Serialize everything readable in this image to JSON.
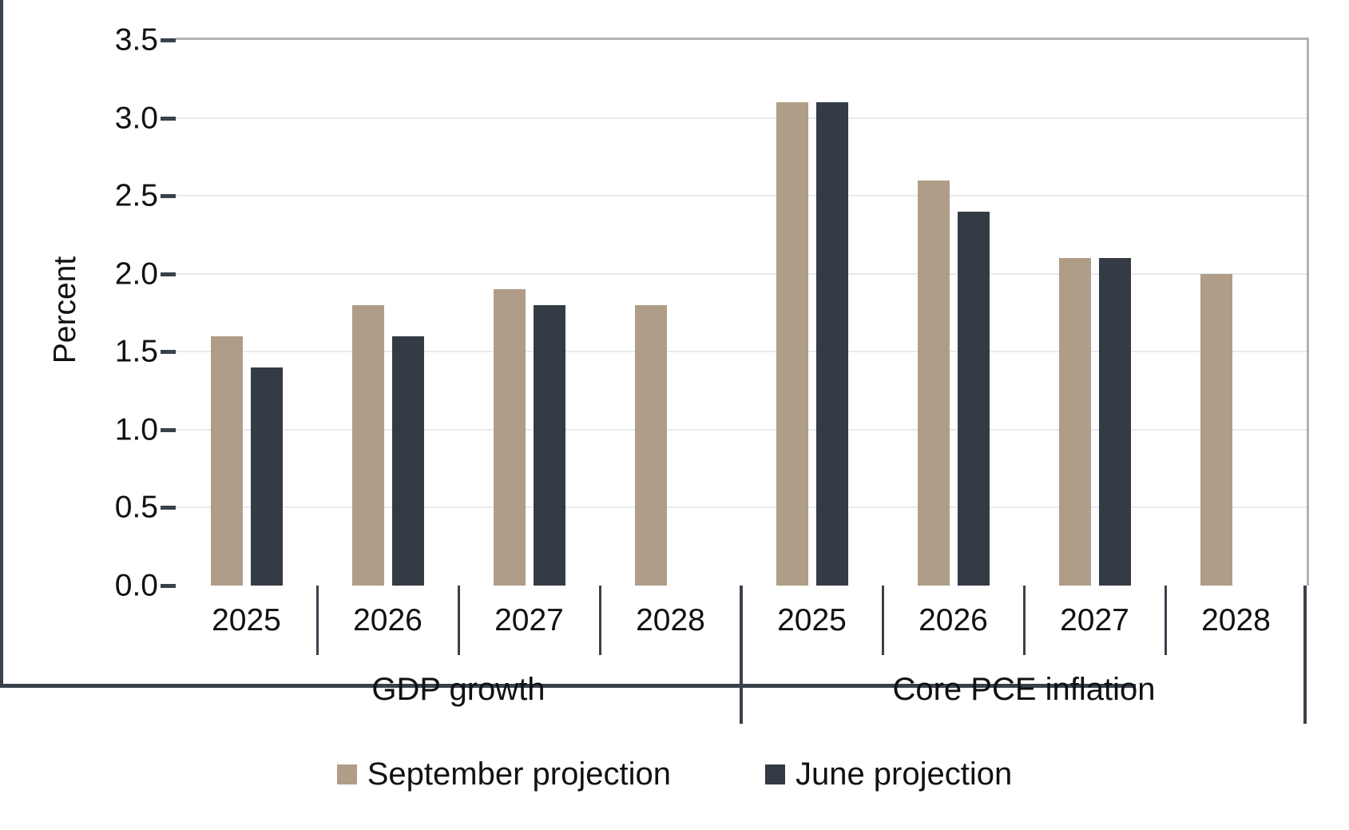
{
  "chart_data": {
    "type": "bar",
    "title": "",
    "ylabel": "Percent",
    "ylim": [
      0,
      3.5
    ],
    "ytick_step": 0.5,
    "yticks": [
      "0.0",
      "0.5",
      "1.0",
      "1.5",
      "2.0",
      "2.5",
      "3.0",
      "3.5"
    ],
    "grid": true,
    "legend_position": "bottom",
    "series": [
      {
        "key": "september",
        "name": "September projection",
        "color": "#AF9D88"
      },
      {
        "key": "june",
        "name": "June projection",
        "color": "#343B44"
      }
    ],
    "groups": [
      {
        "label": "GDP growth",
        "categories": [
          "2025",
          "2026",
          "2027",
          "2028"
        ],
        "september": [
          1.6,
          1.8,
          1.9,
          1.8
        ],
        "june": [
          1.4,
          1.6,
          1.8,
          null
        ]
      },
      {
        "label": "Core PCE inflation",
        "categories": [
          "2025",
          "2026",
          "2027",
          "2028"
        ],
        "september": [
          3.1,
          2.6,
          2.1,
          2.0
        ],
        "june": [
          3.1,
          2.4,
          2.1,
          null
        ]
      }
    ]
  },
  "colors": {
    "september": "#AF9D88",
    "june": "#343B44",
    "axis": "#39414B",
    "gridline": "#E7EBED",
    "plot_border": "#AEB2B3",
    "text": "#111111",
    "background": "#FFFFFF"
  }
}
